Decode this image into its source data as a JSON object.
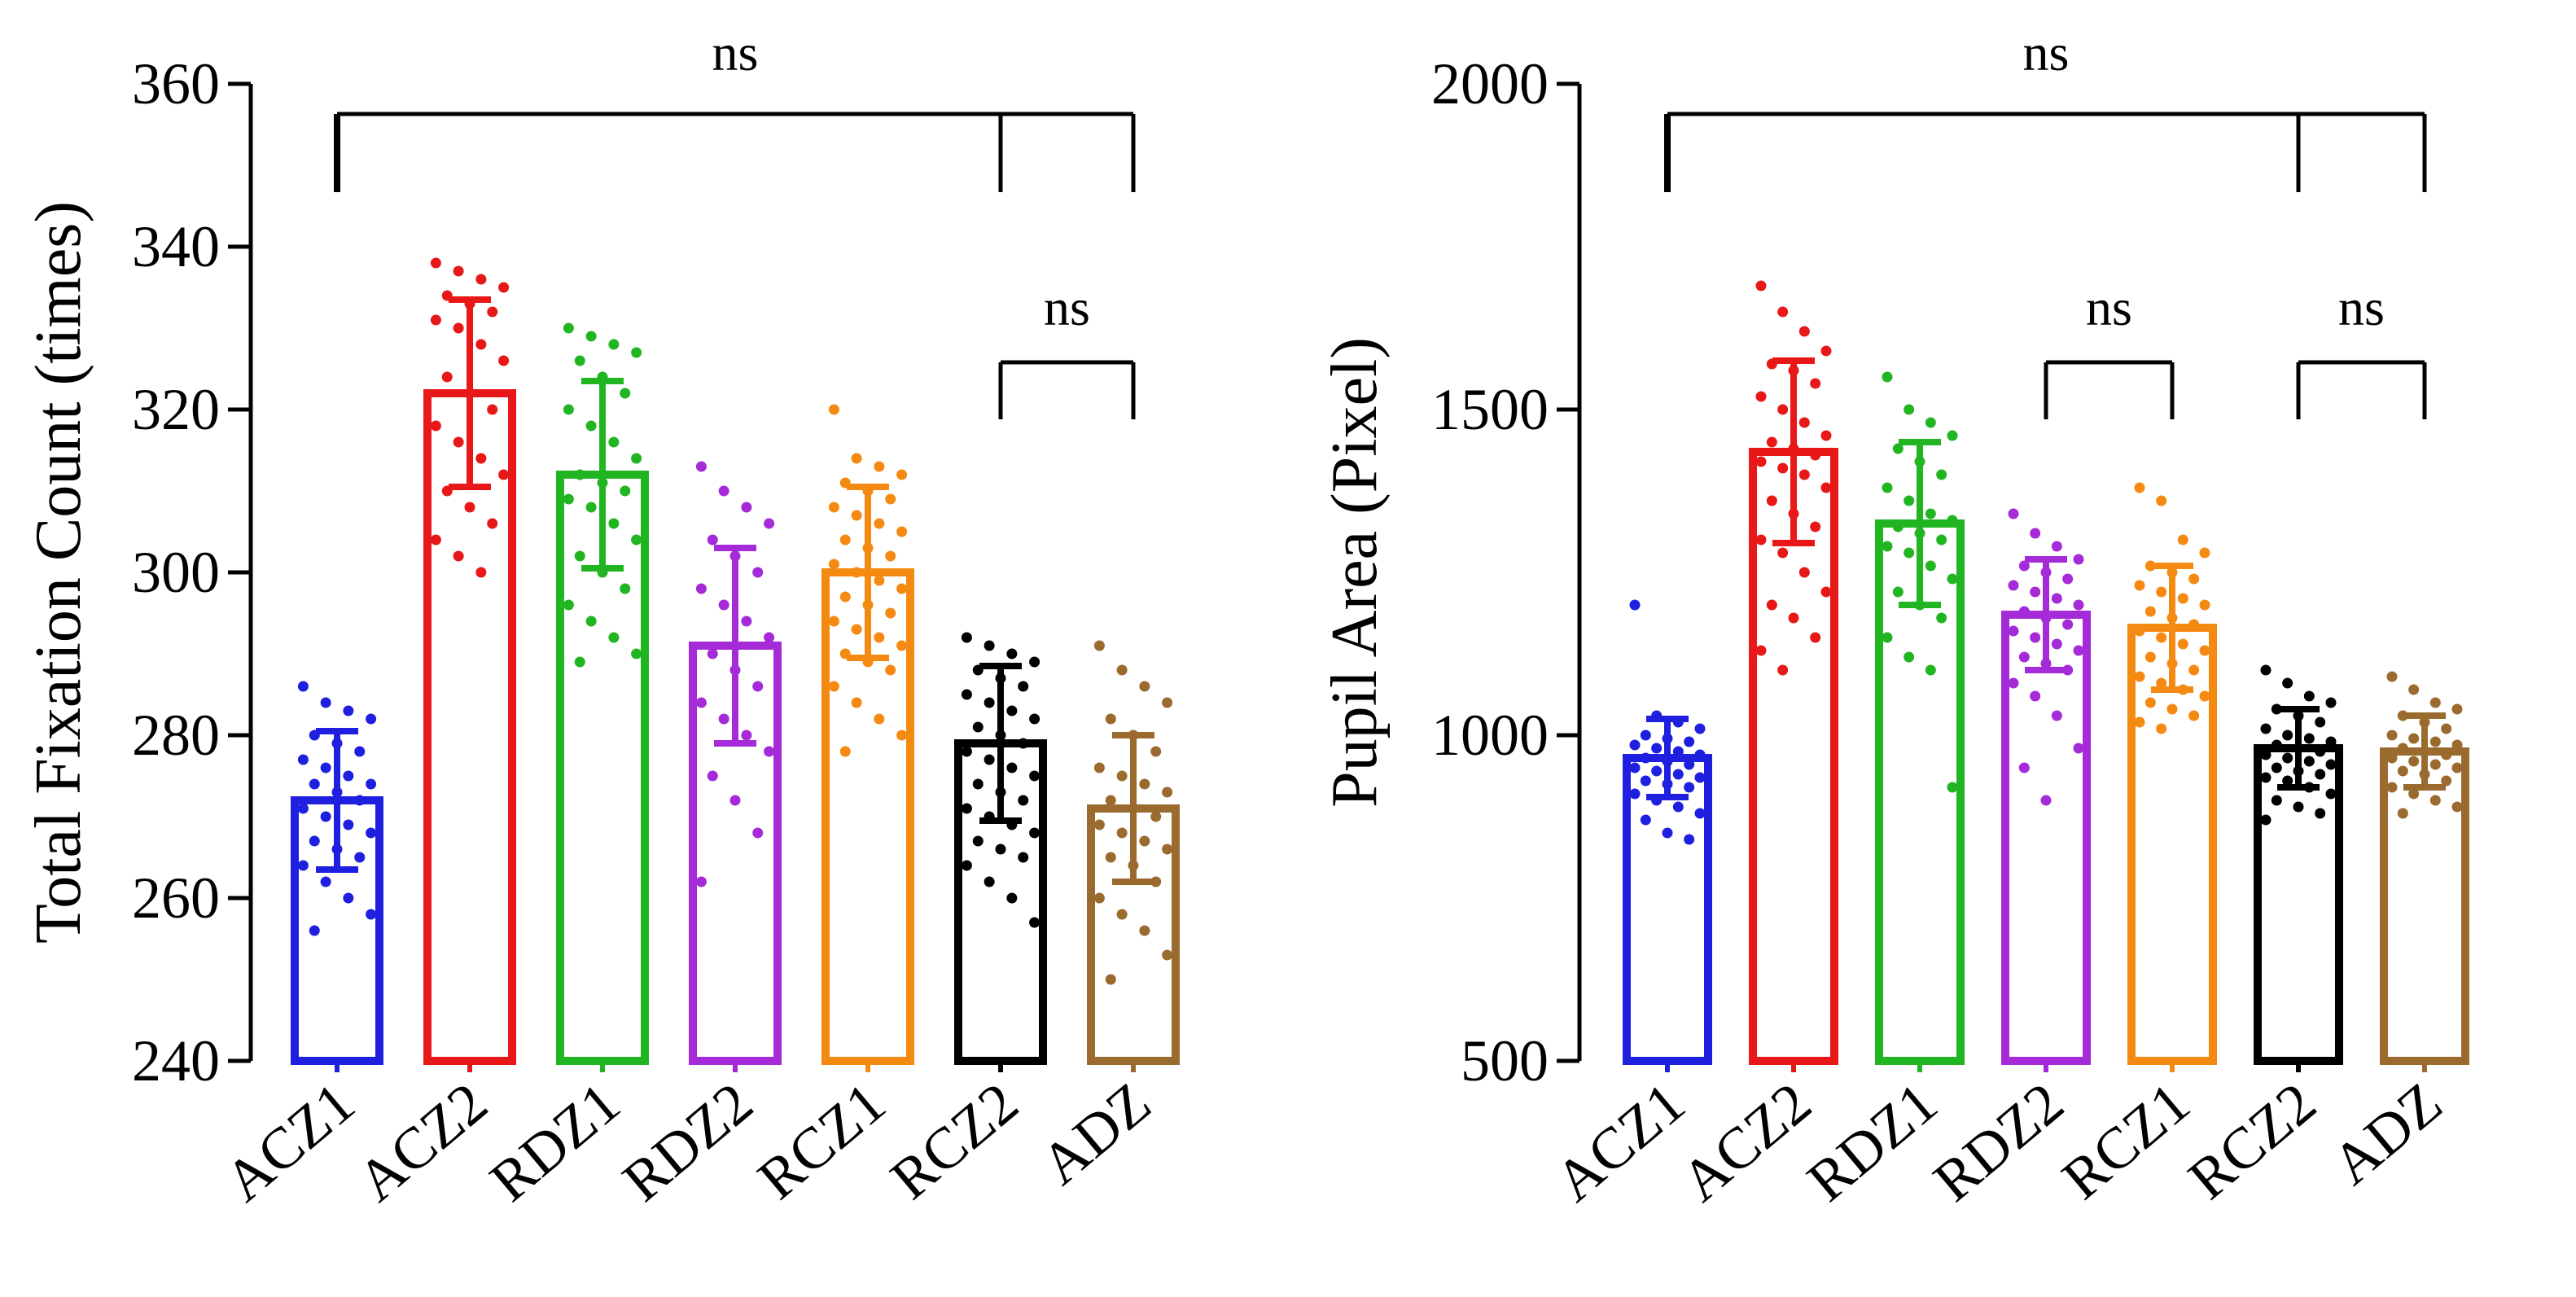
{
  "chart_data": [
    {
      "type": "bar",
      "ylabel": "Total Fixation Count (times)",
      "ylim": [
        240,
        360
      ],
      "yticks": [
        240,
        260,
        280,
        300,
        320,
        340,
        360
      ],
      "categories": [
        "ACZ1",
        "ACZ2",
        "RDZ1",
        "RDZ2",
        "RCZ1",
        "RCZ2",
        "ADZ"
      ],
      "colors": [
        "#1f1fe0",
        "#e81818",
        "#22b522",
        "#a52ad8",
        "#f58a12",
        "#000000",
        "#9a6a2e"
      ],
      "means": [
        272,
        322,
        312,
        291,
        300,
        279,
        271
      ],
      "sd": [
        8.5,
        11.5,
        11.5,
        12,
        10.5,
        9.5,
        9
      ],
      "points": [
        [
          286,
          284,
          283,
          282,
          280,
          279,
          278,
          277,
          276,
          275,
          274,
          274,
          273,
          272,
          271,
          270,
          269,
          268,
          267,
          266,
          265,
          264,
          262,
          260,
          258,
          256
        ],
        [
          338,
          337,
          336,
          335,
          334,
          333,
          332,
          331,
          330,
          328,
          326,
          324,
          322,
          320,
          318,
          316,
          314,
          312,
          310,
          308,
          306,
          304,
          302,
          300
        ],
        [
          330,
          329,
          328,
          327,
          326,
          324,
          322,
          320,
          318,
          316,
          314,
          312,
          311,
          310,
          309,
          308,
          306,
          304,
          302,
          300,
          298,
          296,
          294,
          292,
          290,
          289
        ],
        [
          313,
          310,
          308,
          306,
          304,
          302,
          300,
          298,
          296,
          294,
          292,
          290,
          288,
          286,
          284,
          282,
          280,
          278,
          275,
          272,
          268,
          262
        ],
        [
          320,
          314,
          313,
          312,
          311,
          310,
          309,
          308,
          307,
          306,
          305,
          304,
          303,
          302,
          301,
          300,
          299,
          298,
          297,
          296,
          295,
          294,
          293,
          292,
          291,
          290,
          289,
          288,
          286,
          284,
          282,
          280,
          278
        ],
        [
          292,
          291,
          290,
          289,
          288,
          287,
          286,
          285,
          284,
          283,
          282,
          281,
          280,
          279,
          278,
          277,
          276,
          275,
          274,
          273,
          272,
          271,
          270,
          269,
          268,
          267,
          266,
          265,
          264,
          262,
          260,
          257
        ],
        [
          291,
          288,
          286,
          284,
          282,
          280,
          278,
          276,
          275,
          274,
          273,
          272,
          271,
          270,
          269,
          268,
          267,
          266,
          265,
          264,
          262,
          260,
          258,
          256,
          253,
          250
        ]
      ],
      "brackets": [
        {
          "from": "ACZ1",
          "to": [
            "RCZ2",
            "ADZ"
          ],
          "label": "ns"
        },
        {
          "from": "RCZ2",
          "to": [
            "ADZ"
          ],
          "label": "ns"
        }
      ]
    },
    {
      "type": "bar",
      "ylabel": "Pupil Area (Pixel)",
      "ylim": [
        500,
        2000
      ],
      "yticks": [
        500,
        1000,
        1500,
        2000
      ],
      "categories": [
        "ACZ1",
        "ACZ2",
        "RDZ1",
        "RDZ2",
        "RCZ1",
        "RCZ2",
        "ADZ"
      ],
      "colors": [
        "#1f1fe0",
        "#e81818",
        "#22b522",
        "#a52ad8",
        "#f58a12",
        "#000000",
        "#9a6a2e"
      ],
      "means": [
        965,
        1435,
        1325,
        1185,
        1165,
        980,
        975
      ],
      "sd": [
        60,
        140,
        125,
        85,
        95,
        60,
        55
      ],
      "points": [
        [
          1200,
          1030,
          1020,
          1010,
          1000,
          995,
          990,
          985,
          980,
          975,
          970,
          965,
          960,
          955,
          950,
          945,
          940,
          935,
          930,
          925,
          920,
          910,
          900,
          890,
          880,
          870,
          850,
          840
        ],
        [
          1690,
          1650,
          1620,
          1590,
          1570,
          1560,
          1540,
          1520,
          1500,
          1480,
          1460,
          1450,
          1440,
          1430,
          1420,
          1410,
          1400,
          1380,
          1360,
          1340,
          1320,
          1300,
          1280,
          1250,
          1220,
          1200,
          1180,
          1150,
          1130,
          1100
        ],
        [
          1550,
          1500,
          1480,
          1460,
          1440,
          1420,
          1400,
          1380,
          1360,
          1340,
          1330,
          1320,
          1310,
          1300,
          1290,
          1280,
          1260,
          1240,
          1220,
          1200,
          1180,
          1150,
          1120,
          1100,
          920
        ],
        [
          1340,
          1310,
          1290,
          1270,
          1260,
          1250,
          1240,
          1230,
          1220,
          1210,
          1200,
          1190,
          1180,
          1170,
          1160,
          1150,
          1140,
          1130,
          1120,
          1110,
          1100,
          1080,
          1060,
          1030,
          980,
          950,
          900
        ],
        [
          1380,
          1360,
          1300,
          1280,
          1260,
          1250,
          1240,
          1230,
          1220,
          1210,
          1200,
          1190,
          1180,
          1170,
          1160,
          1150,
          1140,
          1130,
          1120,
          1110,
          1100,
          1090,
          1080,
          1070,
          1060,
          1050,
          1040,
          1030,
          1020,
          1010
        ],
        [
          1100,
          1080,
          1060,
          1050,
          1040,
          1030,
          1020,
          1010,
          1000,
          995,
          990,
          985,
          980,
          975,
          970,
          965,
          960,
          955,
          950,
          945,
          940,
          935,
          930,
          920,
          910,
          900,
          890,
          880,
          870
        ],
        [
          1090,
          1070,
          1050,
          1040,
          1030,
          1020,
          1010,
          1000,
          995,
          990,
          985,
          980,
          975,
          970,
          965,
          960,
          955,
          950,
          945,
          940,
          930,
          920,
          910,
          900,
          890,
          880
        ]
      ],
      "brackets": [
        {
          "from": "ACZ1",
          "to": [
            "RCZ2",
            "ADZ"
          ],
          "label": "ns"
        },
        {
          "from": "RDZ2",
          "to": [
            "RCZ1"
          ],
          "label": "ns"
        },
        {
          "from": "RCZ2",
          "to": [
            "ADZ"
          ],
          "label": "ns"
        }
      ]
    }
  ]
}
